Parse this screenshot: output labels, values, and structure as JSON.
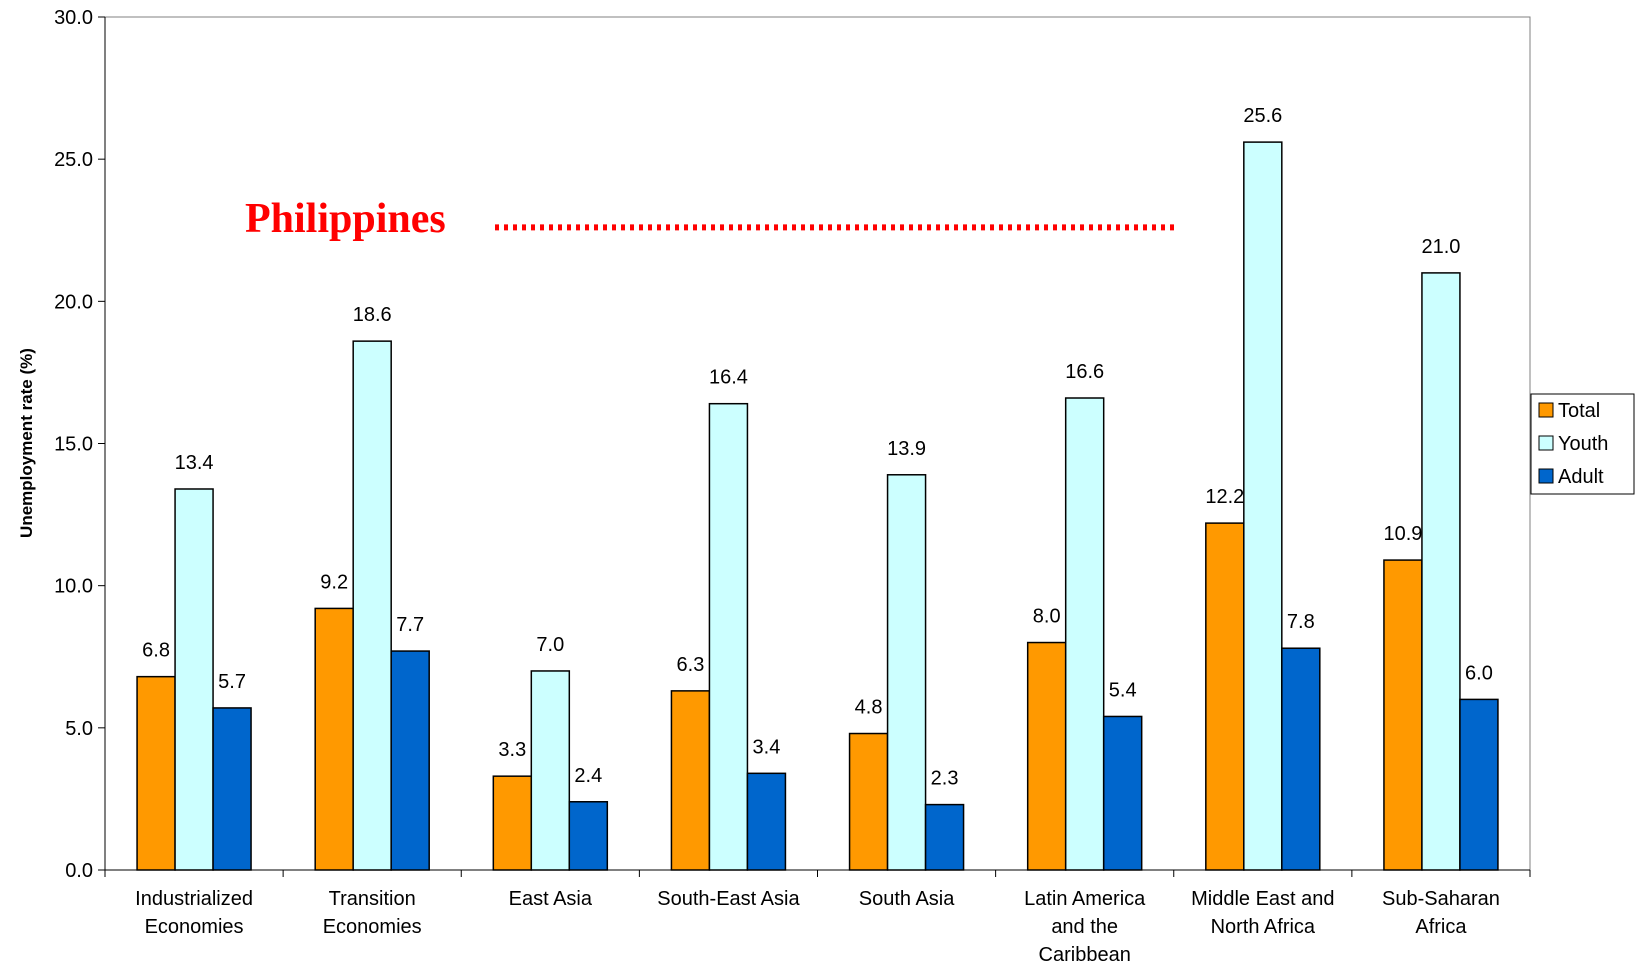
{
  "chart_data": {
    "type": "bar",
    "title": "",
    "xlabel": "",
    "ylabel": "Unemployment rate (%)",
    "ylim": [
      0,
      30
    ],
    "yticks": [
      "0.0",
      "5.0",
      "10.0",
      "15.0",
      "20.0",
      "25.0",
      "30.0"
    ],
    "grid": false,
    "legend_position": "right",
    "categories": [
      [
        "Industrialized",
        "Economies"
      ],
      [
        "Transition",
        "Economies"
      ],
      [
        "East Asia"
      ],
      [
        "South-East Asia"
      ],
      [
        "South Asia"
      ],
      [
        "Latin America",
        "and the",
        "Caribbean"
      ],
      [
        "Middle East and",
        "North Africa"
      ],
      [
        "Sub-Saharan",
        "Africa"
      ]
    ],
    "series": [
      {
        "name": "Total",
        "color": "#ff9900",
        "values": [
          6.8,
          9.2,
          3.3,
          6.3,
          4.8,
          8.0,
          12.2,
          10.9
        ]
      },
      {
        "name": "Youth",
        "color": "#ccffff",
        "values": [
          13.4,
          18.6,
          7.0,
          16.4,
          13.9,
          16.6,
          25.6,
          21.0
        ]
      },
      {
        "name": "Adult",
        "color": "#0066cc",
        "values": [
          5.7,
          7.7,
          2.4,
          3.4,
          2.3,
          5.4,
          7.8,
          6.0
        ]
      }
    ],
    "annotation": {
      "text": "Philippines",
      "color": "#ff0000",
      "y_value": 22.6
    }
  }
}
